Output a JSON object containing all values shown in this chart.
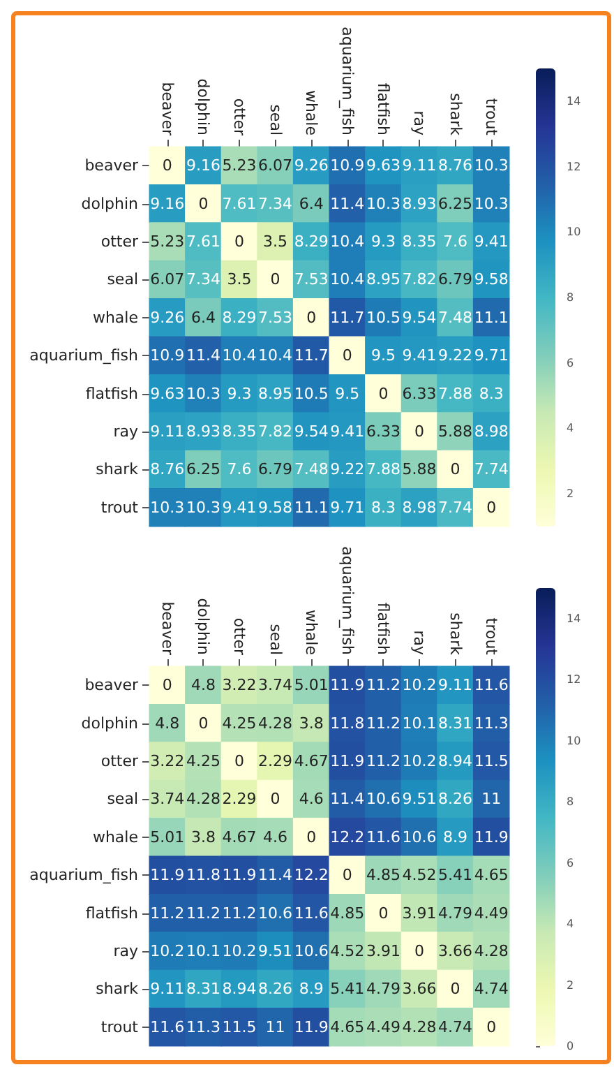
{
  "chart_data": [
    {
      "type": "heatmap",
      "categories": [
        "beaver",
        "dolphin",
        "otter",
        "seal",
        "whale",
        "aquarium_fish",
        "flatfish",
        "ray",
        "shark",
        "trout"
      ],
      "y_categories": [
        "beaver",
        "dolphin",
        "otter",
        "seal",
        "whale",
        "aquarium_fish",
        "flatfish",
        "ray",
        "shark",
        "trout"
      ],
      "cells": [
        [
          0,
          9.16,
          5.23,
          6.07,
          9.26,
          10.9,
          9.63,
          9.11,
          8.76,
          10.3
        ],
        [
          9.16,
          0,
          7.61,
          7.34,
          6.4,
          11.4,
          10.3,
          8.93,
          6.25,
          10.3
        ],
        [
          5.23,
          7.61,
          0,
          3.5,
          8.29,
          10.4,
          9.3,
          8.35,
          7.6,
          9.41
        ],
        [
          6.07,
          7.34,
          3.5,
          0,
          7.53,
          10.4,
          8.95,
          7.82,
          6.79,
          9.58
        ],
        [
          9.26,
          6.4,
          8.29,
          7.53,
          0,
          11.7,
          10.5,
          9.54,
          7.48,
          11.1
        ],
        [
          10.9,
          11.4,
          10.4,
          10.4,
          11.7,
          0,
          9.5,
          9.41,
          9.22,
          9.71
        ],
        [
          9.63,
          10.3,
          9.3,
          8.95,
          10.5,
          9.5,
          0,
          6.33,
          7.88,
          8.3
        ],
        [
          9.11,
          8.93,
          8.35,
          7.82,
          9.54,
          9.41,
          6.33,
          0,
          5.88,
          8.98
        ],
        [
          8.76,
          6.25,
          7.6,
          6.79,
          7.48,
          9.22,
          7.88,
          5.88,
          0,
          7.74
        ],
        [
          10.3,
          10.3,
          9.41,
          9.58,
          11.1,
          9.71,
          8.3,
          8.98,
          7.74,
          0
        ]
      ],
      "clim": [
        1,
        15
      ],
      "cticks": [
        2,
        4,
        6,
        8,
        10,
        12,
        14
      ],
      "data_labels": true
    },
    {
      "type": "heatmap",
      "categories": [
        "beaver",
        "dolphin",
        "otter",
        "seal",
        "whale",
        "aquarium_fish",
        "flatfish",
        "ray",
        "shark",
        "trout"
      ],
      "y_categories": [
        "beaver",
        "dolphin",
        "otter",
        "seal",
        "whale",
        "aquarium_fish",
        "flatfish",
        "ray",
        "shark",
        "trout"
      ],
      "cells": [
        [
          0,
          4.8,
          3.22,
          3.74,
          5.01,
          11.9,
          11.2,
          10.2,
          9.11,
          11.6
        ],
        [
          4.8,
          0,
          4.25,
          4.28,
          3.8,
          11.8,
          11.2,
          10.1,
          8.31,
          11.3
        ],
        [
          3.22,
          4.25,
          0,
          2.29,
          4.67,
          11.9,
          11.2,
          10.2,
          8.94,
          11.5
        ],
        [
          3.74,
          4.28,
          2.29,
          0,
          4.6,
          11.4,
          10.6,
          9.51,
          8.26,
          11
        ],
        [
          5.01,
          3.8,
          4.67,
          4.6,
          0,
          12.2,
          11.6,
          10.6,
          8.9,
          11.9
        ],
        [
          11.9,
          11.8,
          11.9,
          11.4,
          12.2,
          0,
          4.85,
          4.52,
          5.41,
          4.65
        ],
        [
          11.2,
          11.2,
          11.2,
          10.6,
          11.6,
          4.85,
          0,
          3.91,
          4.79,
          4.49
        ],
        [
          10.2,
          10.1,
          10.2,
          9.51,
          10.6,
          4.52,
          3.91,
          0,
          3.66,
          4.28
        ],
        [
          9.11,
          8.31,
          8.94,
          8.26,
          8.9,
          5.41,
          4.79,
          3.66,
          0,
          4.74
        ],
        [
          11.6,
          11.3,
          11.5,
          11,
          11.9,
          4.65,
          4.49,
          4.28,
          4.74,
          0
        ]
      ],
      "clim": [
        0,
        15
      ],
      "cticks": [
        0,
        2,
        4,
        6,
        8,
        10,
        12,
        14
      ],
      "data_labels": true
    }
  ]
}
